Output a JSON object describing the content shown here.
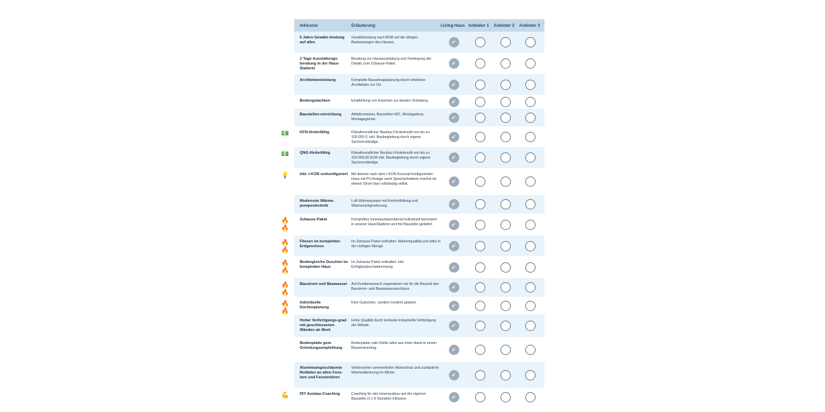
{
  "header": {
    "inklusive": "Inklusive",
    "erlaeuterung": "Erläuterung",
    "providers": [
      "Living Haus",
      "Anbieter 1",
      "Anbieter 2",
      "Anbieter 3"
    ]
  },
  "colors": {
    "header_bg": "#c5d9e8",
    "row_alt": "#e8f3fb",
    "check_filled": "#9dabba",
    "check_empty_border": "#6c7884"
  },
  "rows": [
    {
      "icon": "",
      "title": "5 Jahre Gewähr-leistung auf alles",
      "text": "Gewährleistung nach BGB auf die übrigen Bauleistungen des Hauses.",
      "checks": [
        true,
        false,
        false,
        false
      ]
    },
    {
      "icon": "",
      "title": "2 Tage Ausstattungs-beratung in der Haus-Statterei",
      "text": "Beratung zur Hausausstattung und Festlegung der Details zum Zuhause-Paket.",
      "checks": [
        true,
        false,
        false,
        false
      ]
    },
    {
      "icon": "",
      "title": "Architektenleistung",
      "text": "Komplette Bauantragsplanung durch erfahrene Architekten vor Ort.",
      "checks": [
        true,
        false,
        false,
        false
      ]
    },
    {
      "icon": "",
      "title": "Bodengutachten",
      "text": "Empfehlung von Experten zur idealen Gründung.",
      "checks": [
        true,
        false,
        false,
        false
      ]
    },
    {
      "icon": "",
      "title": "Baustellen-einrichtung",
      "text": "Abfallcontainer, Baustellen-WC, Montagekran, Montagegerüst.",
      "checks": [
        true,
        false,
        false,
        false
      ]
    },
    {
      "icon": "money-icon",
      "title": "KFN-förderfähig",
      "text": "Klimafreundlicher Neubau Förderkredit von bis zu 100.000 €; inkl. Baubegleitung durch eigene Sachverständige.",
      "checks": [
        true,
        false,
        false,
        false
      ]
    },
    {
      "icon": "money-icon",
      "title": "QNG-förderfähig",
      "text": "Klimafreundlicher Neubau Förderkredit von bis zu 150.000,00 EUR inkl. Baubegleitung durch eigene Sachverständige.",
      "checks": [
        true,
        false,
        false,
        false
      ]
    },
    {
      "icon": "lightbulb-icon",
      "title": "Inkl. I-KON vorkonfiguriert",
      "text": "Mit deinem nach dem I-KON Konzept konfigurierten Haus mit PV-Anlage samt Speicherbatterie machst du deinen Strom fast vollständig selbst.",
      "checks": [
        true,
        false,
        false,
        false
      ]
    },
    {
      "icon": "",
      "title": "Modernste Wärme-pumpentechnik",
      "text": "Luft-Wärmepumpe mit Komfortlüftung und Wärmerückgewinnung.",
      "checks": [
        true,
        false,
        false,
        false
      ]
    },
    {
      "icon": "fire-icon",
      "title": "Zuhause-Paket",
      "text": "Komplettes Innenausbaumaterial individuell bemustert in unserer HausStatterei und frei Baustelle geliefert.",
      "checks": [
        true,
        false,
        false,
        false
      ]
    },
    {
      "icon": "fire-icon",
      "title": "Fliesen im kompletten Erdgeschoss",
      "text": "Im Zuhause-Paket enthalten: Markenqualität und alles in der richtigen Menge.",
      "checks": [
        true,
        false,
        false,
        false
      ]
    },
    {
      "icon": "fire-icon",
      "title": "Bodengleiche Duschen im kompletten Haus",
      "text": "Im Zuhause-Paket enthalten: inkl. Echtglasduschabtrennung.",
      "checks": [
        true,
        false,
        false,
        false
      ]
    },
    {
      "icon": "fire-icon",
      "title": "Baustrom und Bauwasser",
      "text": "Auf Kundenwunsch organisieren wir für die Bauzeit den Baustrom- und Bauwasseranschluss.",
      "checks": [
        true,
        false,
        false,
        false
      ]
    },
    {
      "icon": "fire-icon",
      "title": "Individuelle Küchenplanung",
      "text": "Kein Gutschein, sondern konkret geplant.",
      "checks": [
        true,
        false,
        false,
        false
      ]
    },
    {
      "icon": "",
      "title": "Hoher Vorfertigungs-grad mit geschlossenen Wänden ab Werk",
      "text": "Hohe Qualität durch konkrete industrielle Vorfertigung der Wände.",
      "checks": [
        true,
        false,
        false,
        false
      ]
    },
    {
      "icon": "",
      "title": "Bodenplatte gem. Gründungsempfehlung",
      "text": "Bodenplatte oder Keller alles aus einer Hand in einem Bauwerkvertrag.",
      "checks": [
        true,
        false,
        false,
        false
      ]
    },
    {
      "icon": "",
      "title": "Aluminiumgeschäumte Rolläden an allen Fens-tern und Fenstertüren",
      "text": "Verbesserter sommerlicher Hitzeschutz und zusätzliche Wärmedämmung im Winter.",
      "checks": [
        true,
        false,
        false,
        false
      ]
    },
    {
      "icon": "flexed-arm-icon",
      "title": "DIY Ausbau-Coaching",
      "text": "Coaching für den Innenausbau auf der eigenen Baustelle (3 x 8 Stunden) inklusive.",
      "checks": [
        true,
        false,
        false,
        false
      ]
    }
  ]
}
